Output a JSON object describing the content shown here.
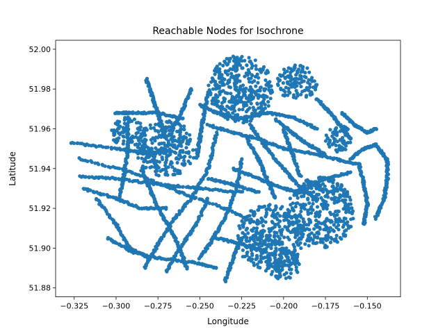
{
  "chart_data": {
    "type": "scatter",
    "title": "Reachable Nodes for Isochrone",
    "xlabel": "Longitude",
    "ylabel": "Latitude",
    "xlim": [
      -0.3361,
      -0.1302
    ],
    "ylim": [
      51.8755,
      52.0045
    ],
    "x_ticks": [
      -0.325,
      -0.3,
      -0.275,
      -0.25,
      -0.225,
      -0.2,
      -0.175,
      -0.15
    ],
    "x_tick_labels": [
      "−0.325",
      "−0.300",
      "−0.275",
      "−0.250",
      "−0.225",
      "−0.200",
      "−0.175",
      "−0.150"
    ],
    "y_ticks": [
      51.88,
      51.9,
      51.92,
      51.94,
      51.96,
      51.98,
      52.0
    ],
    "y_tick_labels": [
      "51.88",
      "51.90",
      "51.92",
      "51.94",
      "51.96",
      "51.98",
      "52.00"
    ],
    "grid": false,
    "legend": "none",
    "color": "#1f77b4",
    "clusters": [
      {
        "x": -0.225,
        "y": 51.98,
        "rx": 0.02,
        "ry": 0.017
      },
      {
        "x": -0.192,
        "y": 51.983,
        "rx": 0.012,
        "ry": 0.009
      },
      {
        "x": -0.27,
        "y": 51.95,
        "rx": 0.018,
        "ry": 0.014
      },
      {
        "x": -0.293,
        "y": 51.958,
        "rx": 0.01,
        "ry": 0.008
      },
      {
        "x": -0.178,
        "y": 51.918,
        "rx": 0.02,
        "ry": 0.018
      },
      {
        "x": -0.208,
        "y": 51.905,
        "rx": 0.02,
        "ry": 0.017
      },
      {
        "x": -0.2,
        "y": 51.892,
        "rx": 0.01,
        "ry": 0.008
      },
      {
        "x": -0.167,
        "y": 51.955,
        "rx": 0.008,
        "ry": 0.007
      }
    ],
    "paths": [
      [
        [
          -0.327,
          51.953
        ],
        [
          -0.3,
          51.95
        ],
        [
          -0.285,
          51.948
        ],
        [
          -0.27,
          51.948
        ]
      ],
      [
        [
          -0.322,
          51.945
        ],
        [
          -0.29,
          51.938
        ],
        [
          -0.262,
          51.928
        ],
        [
          -0.235,
          51.92
        ],
        [
          -0.215,
          51.912
        ]
      ],
      [
        [
          -0.322,
          51.936
        ],
        [
          -0.3,
          51.935
        ],
        [
          -0.275,
          51.932
        ],
        [
          -0.25,
          51.93
        ],
        [
          -0.225,
          51.928
        ]
      ],
      [
        [
          -0.32,
          51.93
        ],
        [
          -0.3,
          51.925
        ],
        [
          -0.285,
          51.92
        ],
        [
          -0.27,
          51.92
        ]
      ],
      [
        [
          -0.312,
          51.925
        ],
        [
          -0.3,
          51.912
        ],
        [
          -0.292,
          51.9
        ],
        [
          -0.28,
          51.895
        ]
      ],
      [
        [
          -0.305,
          51.905
        ],
        [
          -0.29,
          51.898
        ],
        [
          -0.275,
          51.895
        ],
        [
          -0.255,
          51.893
        ],
        [
          -0.24,
          51.89
        ]
      ],
      [
        [
          -0.283,
          51.89
        ],
        [
          -0.275,
          51.902
        ],
        [
          -0.265,
          51.915
        ],
        [
          -0.255,
          51.925
        ],
        [
          -0.245,
          51.94
        ],
        [
          -0.24,
          51.958
        ]
      ],
      [
        [
          -0.27,
          51.888
        ],
        [
          -0.262,
          51.9
        ],
        [
          -0.252,
          51.912
        ],
        [
          -0.245,
          51.925
        ]
      ],
      [
        [
          -0.25,
          51.895
        ],
        [
          -0.242,
          51.905
        ],
        [
          -0.235,
          51.915
        ],
        [
          -0.228,
          51.93
        ],
        [
          -0.225,
          51.945
        ]
      ],
      [
        [
          -0.235,
          51.883
        ],
        [
          -0.23,
          51.895
        ],
        [
          -0.225,
          51.905
        ]
      ],
      [
        [
          -0.298,
          51.925
        ],
        [
          -0.295,
          51.938
        ],
        [
          -0.293,
          51.95
        ],
        [
          -0.293,
          51.965
        ]
      ],
      [
        [
          -0.3,
          51.968
        ],
        [
          -0.29,
          51.968
        ],
        [
          -0.275,
          51.968
        ],
        [
          -0.26,
          51.965
        ]
      ],
      [
        [
          -0.282,
          51.985
        ],
        [
          -0.278,
          51.975
        ],
        [
          -0.274,
          51.965
        ],
        [
          -0.27,
          51.955
        ]
      ],
      [
        [
          -0.255,
          51.98
        ],
        [
          -0.26,
          51.97
        ],
        [
          -0.265,
          51.962
        ]
      ],
      [
        [
          -0.245,
          51.962
        ],
        [
          -0.23,
          51.958
        ],
        [
          -0.215,
          51.955
        ],
        [
          -0.2,
          51.95
        ],
        [
          -0.185,
          51.948
        ],
        [
          -0.17,
          51.945
        ],
        [
          -0.155,
          51.942
        ]
      ],
      [
        [
          -0.25,
          51.972
        ],
        [
          -0.24,
          51.968
        ],
        [
          -0.228,
          51.965
        ],
        [
          -0.21,
          51.968
        ],
        [
          -0.195,
          51.966
        ],
        [
          -0.18,
          51.96
        ]
      ],
      [
        [
          -0.22,
          51.962
        ],
        [
          -0.21,
          51.95
        ],
        [
          -0.2,
          51.94
        ],
        [
          -0.19,
          51.93
        ],
        [
          -0.18,
          51.925
        ]
      ],
      [
        [
          -0.2,
          51.96
        ],
        [
          -0.195,
          51.948
        ],
        [
          -0.19,
          51.936
        ]
      ],
      [
        [
          -0.23,
          51.94
        ],
        [
          -0.215,
          51.935
        ],
        [
          -0.2,
          51.93
        ],
        [
          -0.19,
          51.928
        ]
      ],
      [
        [
          -0.245,
          51.935
        ],
        [
          -0.23,
          51.932
        ],
        [
          -0.215,
          51.928
        ]
      ],
      [
        [
          -0.205,
          51.965
        ],
        [
          -0.195,
          51.958
        ],
        [
          -0.185,
          51.952
        ],
        [
          -0.175,
          51.947
        ]
      ],
      [
        [
          -0.18,
          51.975
        ],
        [
          -0.172,
          51.968
        ],
        [
          -0.165,
          51.96
        ],
        [
          -0.16,
          51.955
        ]
      ],
      [
        [
          -0.165,
          51.968
        ],
        [
          -0.158,
          51.962
        ],
        [
          -0.15,
          51.958
        ],
        [
          -0.145,
          51.96
        ]
      ],
      [
        [
          -0.16,
          51.945
        ],
        [
          -0.152,
          51.95
        ],
        [
          -0.145,
          51.952
        ],
        [
          -0.138,
          51.944
        ]
      ],
      [
        [
          -0.138,
          51.944
        ],
        [
          -0.138,
          51.935
        ],
        [
          -0.14,
          51.925
        ],
        [
          -0.145,
          51.915
        ]
      ],
      [
        [
          -0.155,
          51.942
        ],
        [
          -0.152,
          51.932
        ],
        [
          -0.15,
          51.922
        ],
        [
          -0.152,
          51.912
        ]
      ],
      [
        [
          -0.19,
          51.928
        ],
        [
          -0.175,
          51.935
        ],
        [
          -0.16,
          51.938
        ]
      ],
      [
        [
          -0.24,
          51.905
        ],
        [
          -0.225,
          51.902
        ],
        [
          -0.21,
          51.898
        ]
      ],
      [
        [
          -0.245,
          51.978
        ],
        [
          -0.248,
          51.965
        ],
        [
          -0.25,
          51.955
        ],
        [
          -0.252,
          51.945
        ]
      ],
      [
        [
          -0.285,
          51.94
        ],
        [
          -0.28,
          51.93
        ],
        [
          -0.275,
          51.92
        ],
        [
          -0.268,
          51.91
        ],
        [
          -0.262,
          51.9
        ],
        [
          -0.258,
          51.89
        ]
      ],
      [
        [
          -0.222,
          51.955
        ],
        [
          -0.215,
          51.945
        ],
        [
          -0.21,
          51.935
        ],
        [
          -0.205,
          51.925
        ]
      ]
    ]
  }
}
